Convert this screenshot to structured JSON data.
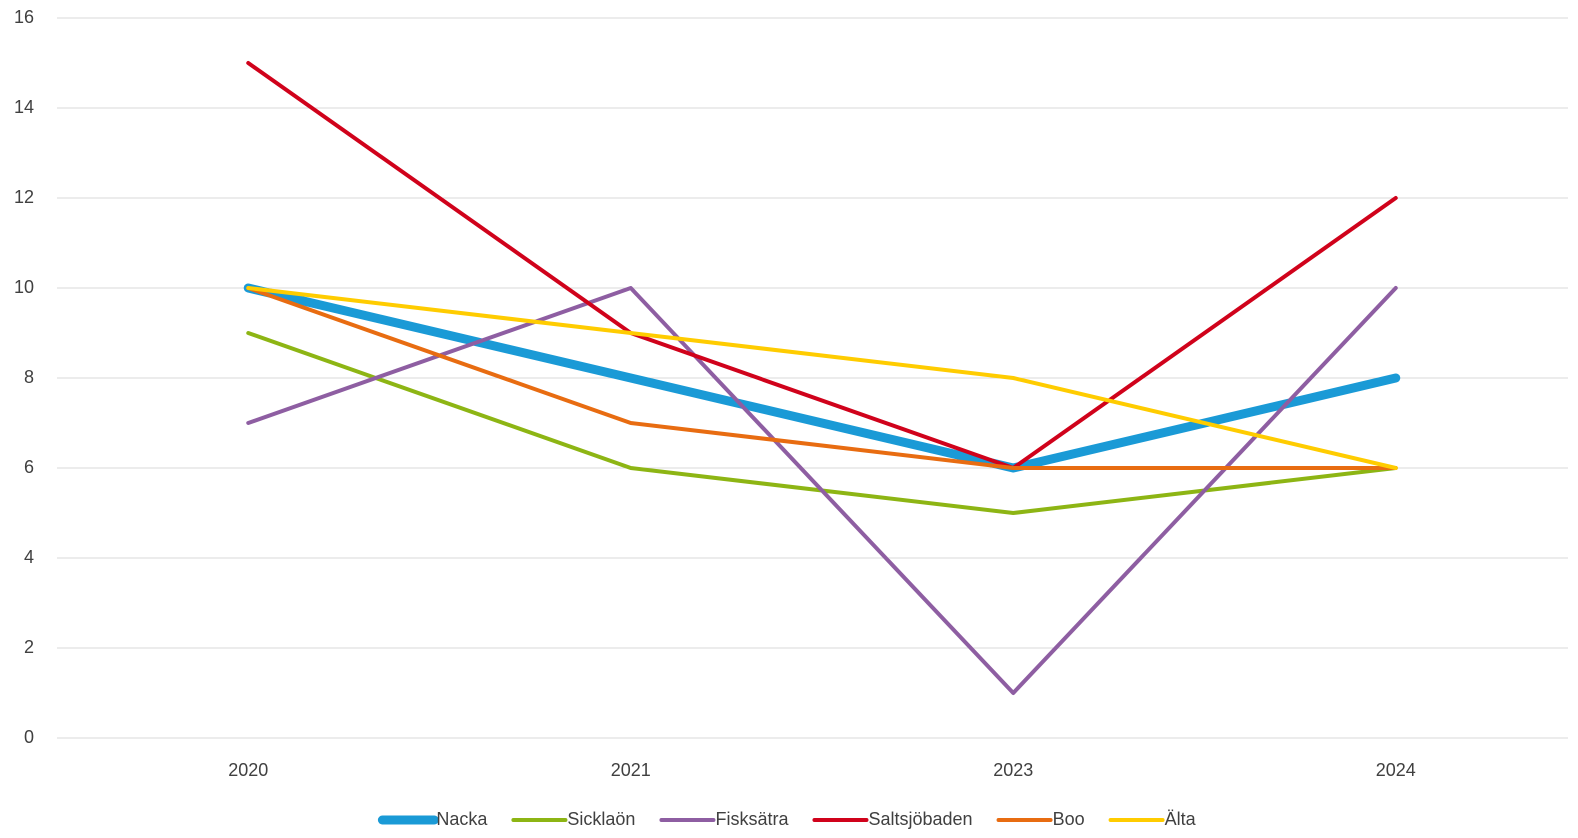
{
  "chart_data": {
    "type": "line",
    "categories": [
      "2020",
      "2021",
      "2023",
      "2024"
    ],
    "series": [
      {
        "name": "Nacka",
        "color": "#1a9ad6",
        "line_width": 9,
        "values": [
          10,
          8,
          6,
          8
        ]
      },
      {
        "name": "Sicklaön",
        "color": "#8db514",
        "line_width": 4,
        "values": [
          9,
          6,
          5,
          6
        ]
      },
      {
        "name": "Fisksätra",
        "color": "#8e5ea2",
        "line_width": 4,
        "values": [
          7,
          10,
          1,
          10
        ]
      },
      {
        "name": "Saltsjöbaden",
        "color": "#d0021b",
        "line_width": 4,
        "values": [
          15,
          9,
          6,
          12
        ]
      },
      {
        "name": "Boo",
        "color": "#e86c11",
        "line_width": 4,
        "values": [
          10,
          7,
          6,
          6
        ]
      },
      {
        "name": "Älta",
        "color": "#ffcc00",
        "line_width": 4,
        "values": [
          10,
          9,
          8,
          6
        ]
      }
    ],
    "ylim": [
      0,
      16
    ],
    "yticks": [
      0,
      2,
      4,
      6,
      8,
      10,
      12,
      14,
      16
    ],
    "grid": true,
    "legend": "bottom"
  }
}
